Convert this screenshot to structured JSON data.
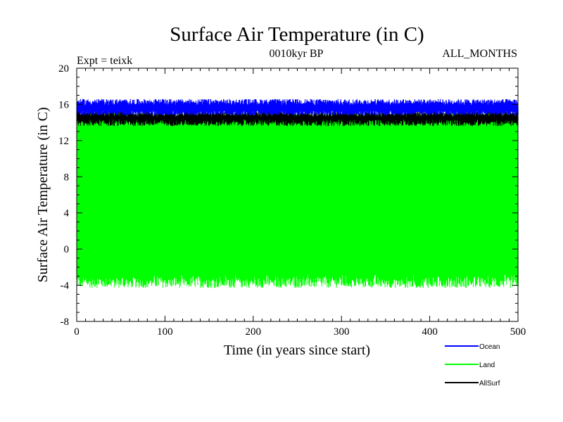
{
  "chart_data": {
    "type": "line",
    "title": "Surface Air Temperature (in C)",
    "subtitle_left": "Expt = teixk",
    "subtitle_center": "0010kyr BP",
    "subtitle_right": "ALL_MONTHS",
    "xlabel": "Time (in years since start)",
    "ylabel": "Surface Air Temperature (in C)",
    "xlim": [
      0,
      500
    ],
    "ylim": [
      -8,
      20
    ],
    "xticks": [
      0,
      100,
      200,
      300,
      400,
      500
    ],
    "yticks": [
      -8,
      -4,
      0,
      4,
      8,
      12,
      16,
      20
    ],
    "legend_position": "bottom-right",
    "series": [
      {
        "name": "Land",
        "color": "#00ff00",
        "values_summary": {
          "min_band": [
            -4.3,
            -2.8
          ],
          "max_band": [
            14.2,
            15.1
          ]
        }
      },
      {
        "name": "AllSurf",
        "color": "#000000",
        "values_summary": {
          "min_band": [
            13.6,
            14.4
          ],
          "max_band": [
            14.6,
            15.3
          ]
        }
      },
      {
        "name": "Ocean",
        "color": "#0000ff",
        "values_summary": {
          "min_band": [
            14.8,
            15.3
          ],
          "max_band": [
            15.9,
            16.6
          ]
        }
      }
    ],
    "legend_order": [
      "Ocean",
      "Land",
      "AllSurf"
    ]
  }
}
